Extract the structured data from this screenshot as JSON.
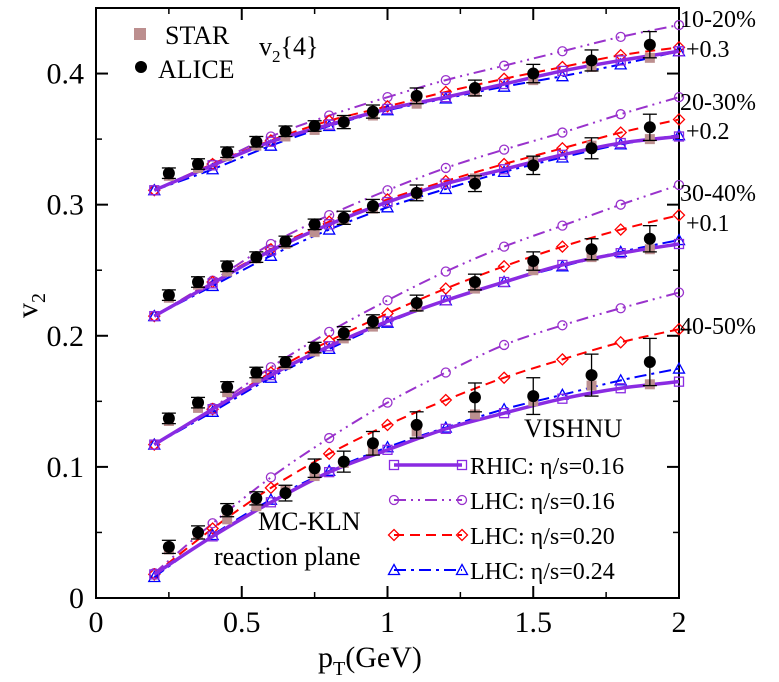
{
  "chart_data": {
    "type": "line",
    "title": "",
    "xlabel": "p",
    "xlabel_sub": "T",
    "xlabel_unit": "(GeV)",
    "ylabel": "v",
    "ylabel_sub": "2",
    "xlim": [
      0,
      2
    ],
    "ylim": [
      0,
      0.45
    ],
    "xticks": [
      0,
      0.5,
      1,
      1.5,
      2
    ],
    "xtick_labels": [
      "0",
      "0.5",
      "1",
      "1.5",
      "2"
    ],
    "yticks": [
      0,
      0.1,
      0.2,
      0.3,
      0.4
    ],
    "ytick_labels": [
      "0",
      "0.1",
      "0.2",
      "0.3",
      "0.4"
    ],
    "annotations": {
      "v2_4_main": "v",
      "v2_4_sub": "2",
      "v2_4_tail": "{4}",
      "vishnu": "VISHNU",
      "mc_kln": "MC-KLN",
      "reaction_plane": "reaction plane"
    },
    "centrality_labels": [
      {
        "class": "10-20%",
        "offset": "+0.3"
      },
      {
        "class": "20-30%",
        "offset": "+0.2"
      },
      {
        "class": "30-40%",
        "offset": "+0.1"
      },
      {
        "class": "40-50%",
        "offset": ""
      }
    ],
    "legend_data": [
      {
        "name": "STAR",
        "marker": "square",
        "color": "#bc8f8f"
      },
      {
        "name": "ALICE",
        "marker": "circle",
        "color": "#000000"
      }
    ],
    "legend_models": [
      {
        "name": "RHIC: η/s=0.16",
        "color": "#8a2be2",
        "marker": "square",
        "dash": "solid"
      },
      {
        "name": "LHC: η/s=0.16",
        "color": "#9932cc",
        "marker": "circle",
        "dash": "dashdotdot"
      },
      {
        "name": "LHC: η/s=0.20",
        "color": "#ff0000",
        "marker": "diamond",
        "dash": "dashed"
      },
      {
        "name": "LHC: η/s=0.24",
        "color": "#0000ff",
        "marker": "triangle",
        "dash": "dashdot"
      }
    ],
    "groups": [
      {
        "centrality": "10-20%",
        "offset": 0.3,
        "alice": {
          "x": [
            0.25,
            0.35,
            0.45,
            0.55,
            0.65,
            0.75,
            0.85,
            0.95,
            1.1,
            1.3,
            1.5,
            1.7,
            1.9
          ],
          "y": [
            0.324,
            0.331,
            0.34,
            0.348,
            0.356,
            0.36,
            0.363,
            0.371,
            0.383,
            0.389,
            0.4,
            0.41,
            0.422
          ],
          "err": [
            0.004,
            0.004,
            0.004,
            0.004,
            0.004,
            0.004,
            0.005,
            0.005,
            0.006,
            0.006,
            0.007,
            0.008,
            0.01
          ]
        },
        "star": {
          "x": [
            0.25,
            0.35,
            0.45,
            0.55,
            0.65,
            0.75,
            0.85,
            0.95,
            1.1,
            1.3,
            1.5,
            1.7,
            1.9
          ],
          "y": [
            0.322,
            0.328,
            0.337,
            0.345,
            0.352,
            0.357,
            0.363,
            0.368,
            0.377,
            0.386,
            0.395,
            0.405,
            0.412
          ]
        },
        "models": {
          "rhic_016": {
            "x": [
              0.2,
              0.4,
              0.6,
              0.8,
              1.0,
              1.2,
              1.4,
              1.6,
              1.8,
              2.0
            ],
            "y": [
              0.311,
              0.33,
              0.348,
              0.361,
              0.373,
              0.382,
              0.392,
              0.402,
              0.41,
              0.417
            ]
          },
          "lhc_016": {
            "x": [
              0.2,
              0.4,
              0.6,
              0.8,
              1.0,
              1.2,
              1.4,
              1.6,
              1.8,
              2.0
            ],
            "y": [
              0.311,
              0.331,
              0.352,
              0.368,
              0.382,
              0.395,
              0.406,
              0.417,
              0.428,
              0.437
            ]
          },
          "lhc_020": {
            "x": [
              0.2,
              0.4,
              0.6,
              0.8,
              1.0,
              1.2,
              1.4,
              1.6,
              1.8,
              2.0
            ],
            "y": [
              0.311,
              0.331,
              0.349,
              0.364,
              0.375,
              0.386,
              0.396,
              0.405,
              0.414,
              0.42
            ]
          },
          "lhc_024": {
            "x": [
              0.2,
              0.4,
              0.6,
              0.8,
              1.0,
              1.2,
              1.4,
              1.6,
              1.8,
              2.0
            ],
            "y": [
              0.311,
              0.327,
              0.345,
              0.36,
              0.372,
              0.381,
              0.39,
              0.398,
              0.407,
              0.417
            ]
          }
        }
      },
      {
        "centrality": "20-30%",
        "offset": 0.2,
        "alice": {
          "x": [
            0.25,
            0.35,
            0.45,
            0.55,
            0.65,
            0.75,
            0.85,
            0.95,
            1.1,
            1.3,
            1.5,
            1.7,
            1.9
          ],
          "y": [
            0.231,
            0.241,
            0.253,
            0.26,
            0.272,
            0.285,
            0.29,
            0.299,
            0.309,
            0.316,
            0.33,
            0.343,
            0.359
          ],
          "err": [
            0.004,
            0.004,
            0.004,
            0.004,
            0.004,
            0.004,
            0.005,
            0.005,
            0.006,
            0.006,
            0.007,
            0.008,
            0.01
          ]
        },
        "star": {
          "x": [
            0.25,
            0.35,
            0.45,
            0.55,
            0.65,
            0.75,
            0.85,
            0.95,
            1.1,
            1.3,
            1.5,
            1.7,
            1.9
          ],
          "y": [
            0.229,
            0.239,
            0.249,
            0.259,
            0.27,
            0.279,
            0.289,
            0.297,
            0.308,
            0.32,
            0.333,
            0.345,
            0.35
          ]
        },
        "models": {
          "rhic_016": {
            "x": [
              0.2,
              0.4,
              0.6,
              0.8,
              1.0,
              1.2,
              1.4,
              1.6,
              1.8,
              2.0
            ],
            "y": [
              0.215,
              0.24,
              0.265,
              0.285,
              0.302,
              0.316,
              0.327,
              0.338,
              0.347,
              0.352
            ]
          },
          "lhc_016": {
            "x": [
              0.2,
              0.4,
              0.6,
              0.8,
              1.0,
              1.2,
              1.4,
              1.6,
              1.8,
              2.0
            ],
            "y": [
              0.215,
              0.242,
              0.27,
              0.292,
              0.311,
              0.328,
              0.342,
              0.355,
              0.369,
              0.382
            ]
          },
          "lhc_020": {
            "x": [
              0.2,
              0.4,
              0.6,
              0.8,
              1.0,
              1.2,
              1.4,
              1.6,
              1.8,
              2.0
            ],
            "y": [
              0.215,
              0.241,
              0.266,
              0.287,
              0.304,
              0.318,
              0.331,
              0.343,
              0.355,
              0.365
            ]
          },
          "lhc_024": {
            "x": [
              0.2,
              0.4,
              0.6,
              0.8,
              1.0,
              1.2,
              1.4,
              1.6,
              1.8,
              2.0
            ],
            "y": [
              0.215,
              0.238,
              0.261,
              0.281,
              0.298,
              0.312,
              0.325,
              0.336,
              0.346,
              0.353
            ]
          }
        }
      },
      {
        "centrality": "30-40%",
        "offset": 0.1,
        "alice": {
          "x": [
            0.25,
            0.35,
            0.45,
            0.55,
            0.65,
            0.75,
            0.85,
            0.95,
            1.1,
            1.3,
            1.5,
            1.7,
            1.9
          ],
          "y": [
            0.137,
            0.149,
            0.161,
            0.172,
            0.18,
            0.191,
            0.202,
            0.211,
            0.225,
            0.241,
            0.257,
            0.266,
            0.274
          ],
          "err": [
            0.004,
            0.004,
            0.004,
            0.004,
            0.004,
            0.004,
            0.005,
            0.005,
            0.006,
            0.006,
            0.007,
            0.008,
            0.01
          ]
        },
        "star": {
          "x": [
            0.25,
            0.35,
            0.45,
            0.55,
            0.65,
            0.75,
            0.85,
            0.95,
            1.1,
            1.3,
            1.5,
            1.7,
            1.9
          ],
          "y": [
            0.135,
            0.145,
            0.157,
            0.168,
            0.178,
            0.188,
            0.198,
            0.207,
            0.222,
            0.236,
            0.25,
            0.26,
            0.266
          ]
        },
        "models": {
          "rhic_016": {
            "x": [
              0.2,
              0.4,
              0.6,
              0.8,
              1.0,
              1.2,
              1.4,
              1.6,
              1.8,
              2.0
            ],
            "y": [
              0.117,
              0.144,
              0.17,
              0.192,
              0.211,
              0.227,
              0.241,
              0.254,
              0.263,
              0.27
            ]
          },
          "lhc_016": {
            "x": [
              0.2,
              0.4,
              0.6,
              0.8,
              1.0,
              1.2,
              1.4,
              1.6,
              1.8,
              2.0
            ],
            "y": [
              0.117,
              0.145,
              0.176,
              0.203,
              0.227,
              0.249,
              0.268,
              0.284,
              0.3,
              0.315
            ]
          },
          "lhc_020": {
            "x": [
              0.2,
              0.4,
              0.6,
              0.8,
              1.0,
              1.2,
              1.4,
              1.6,
              1.8,
              2.0
            ],
            "y": [
              0.117,
              0.144,
              0.172,
              0.196,
              0.217,
              0.236,
              0.253,
              0.268,
              0.281,
              0.292
            ]
          },
          "lhc_024": {
            "x": [
              0.2,
              0.4,
              0.6,
              0.8,
              1.0,
              1.2,
              1.4,
              1.6,
              1.8,
              2.0
            ],
            "y": [
              0.117,
              0.142,
              0.168,
              0.19,
              0.21,
              0.227,
              0.241,
              0.253,
              0.264,
              0.273
            ]
          }
        }
      },
      {
        "centrality": "40-50%",
        "offset": 0,
        "alice": {
          "x": [
            0.25,
            0.35,
            0.45,
            0.55,
            0.65,
            0.75,
            0.85,
            0.95,
            1.1,
            1.3,
            1.5,
            1.7,
            1.9
          ],
          "y": [
            0.039,
            0.05,
            0.067,
            0.076,
            0.08,
            0.099,
            0.104,
            0.118,
            0.132,
            0.153,
            0.154,
            0.17,
            0.18
          ],
          "err": [
            0.005,
            0.005,
            0.005,
            0.005,
            0.006,
            0.007,
            0.008,
            0.009,
            0.01,
            0.011,
            0.014,
            0.016,
            0.018
          ]
        },
        "star": {
          "x": [
            0.25,
            0.35,
            0.45,
            0.55,
            0.65,
            0.75,
            0.85,
            0.95,
            1.1,
            1.3,
            1.5,
            1.7,
            1.9
          ],
          "y": [
            0.037,
            0.049,
            0.06,
            0.07,
            0.082,
            0.093,
            0.103,
            0.113,
            0.127,
            0.14,
            0.15,
            0.162,
            0.163
          ]
        },
        "models": {
          "rhic_016": {
            "x": [
              0.2,
              0.4,
              0.6,
              0.8,
              1.0,
              1.2,
              1.4,
              1.6,
              1.8,
              2.0
            ],
            "y": [
              0.018,
              0.047,
              0.073,
              0.096,
              0.113,
              0.129,
              0.141,
              0.152,
              0.16,
              0.165
            ]
          },
          "lhc_016": {
            "x": [
              0.2,
              0.4,
              0.6,
              0.8,
              1.0,
              1.2,
              1.4,
              1.6,
              1.8,
              2.0
            ],
            "y": [
              0.019,
              0.057,
              0.092,
              0.122,
              0.149,
              0.172,
              0.193,
              0.208,
              0.221,
              0.233
            ]
          },
          "lhc_020": {
            "x": [
              0.2,
              0.4,
              0.6,
              0.8,
              1.0,
              1.2,
              1.4,
              1.6,
              1.8,
              2.0
            ],
            "y": [
              0.018,
              0.053,
              0.084,
              0.11,
              0.132,
              0.151,
              0.168,
              0.182,
              0.195,
              0.205
            ]
          },
          "lhc_024": {
            "x": [
              0.2,
              0.4,
              0.6,
              0.8,
              1.0,
              1.2,
              1.4,
              1.6,
              1.8,
              2.0
            ],
            "y": [
              0.016,
              0.048,
              0.075,
              0.097,
              0.115,
              0.13,
              0.144,
              0.155,
              0.166,
              0.175
            ]
          }
        }
      }
    ]
  }
}
